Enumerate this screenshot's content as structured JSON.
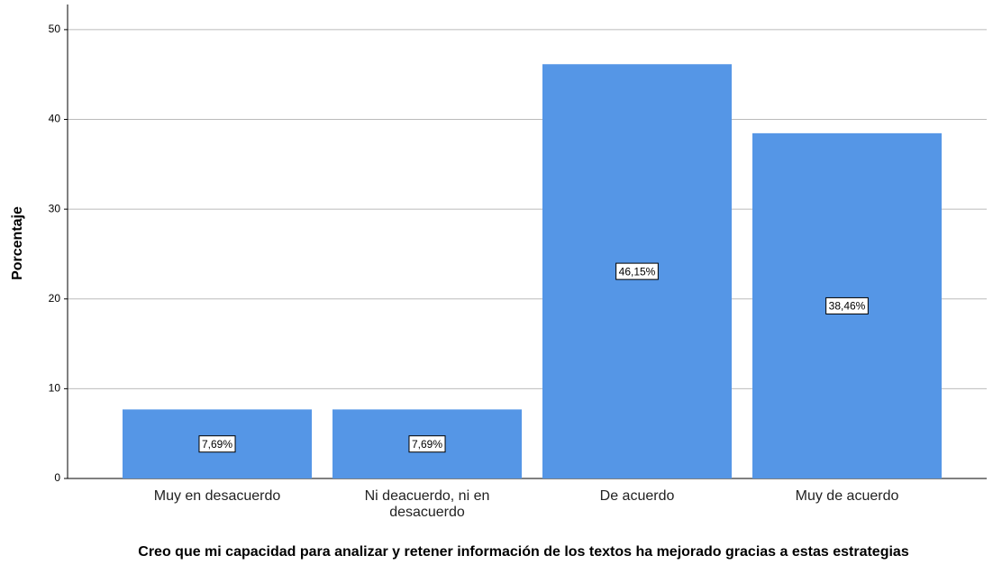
{
  "chart_data": {
    "type": "bar",
    "x_label": "Creo que mi capacidad para analizar y retener información de los textos ha mejorado gracias a estas estrategias",
    "y_label": "Porcentaje",
    "categories": [
      "Muy en desacuerdo",
      "Ni deacuerdo, ni en desacuerdo",
      "De acuerdo",
      "Muy de acuerdo"
    ],
    "values": [
      7.69,
      7.69,
      46.15,
      38.46
    ],
    "value_labels": [
      "7,69%",
      "7,69%",
      "46,15%",
      "38,46%"
    ],
    "color": "#5596e6",
    "ylim": [
      0,
      52.8
    ],
    "yticks": [
      0,
      10,
      20,
      30,
      40,
      50
    ],
    "grid": true
  }
}
